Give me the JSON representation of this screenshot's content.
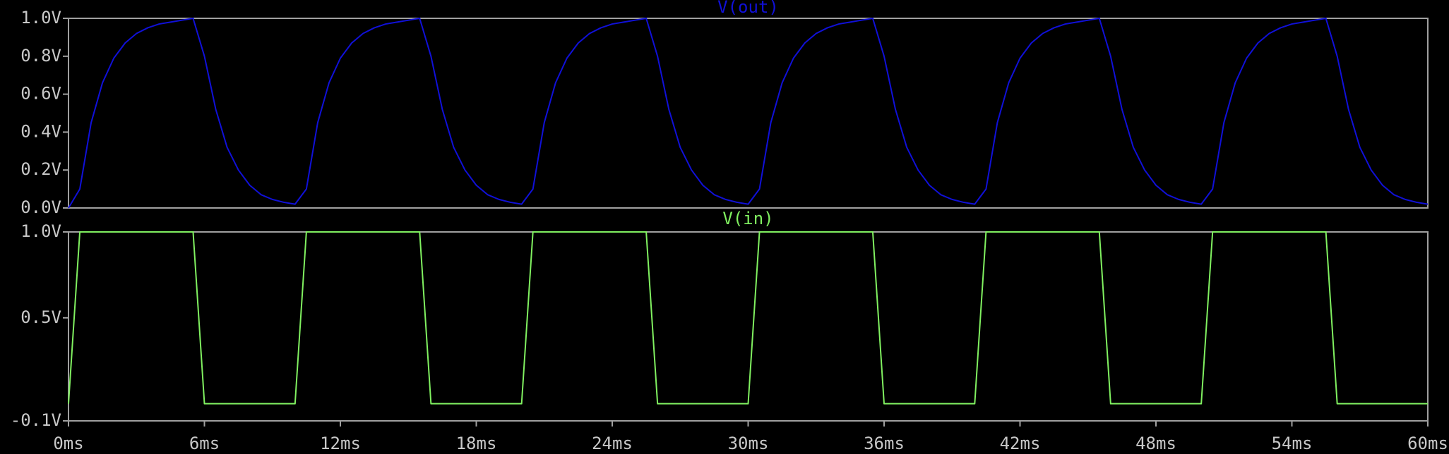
{
  "chart_data": [
    {
      "type": "line",
      "series": [
        {
          "name": "V(out)",
          "color": "#1010d8",
          "x": [
            0,
            0.5,
            1,
            1.5,
            2,
            2.5,
            3,
            3.5,
            4,
            4.5,
            5,
            5.5,
            6,
            6.5,
            7,
            7.5,
            8,
            8.5,
            9,
            9.5,
            10,
            10.5,
            11,
            11.5,
            12,
            12.5,
            13,
            13.5,
            14,
            14.5,
            15,
            15.5,
            16,
            16.5,
            17,
            17.5,
            18,
            18.5,
            19,
            19.5,
            20,
            20.5,
            21,
            21.5,
            22,
            22.5,
            23,
            23.5,
            24,
            24.5,
            25,
            25.5,
            26,
            26.5,
            27,
            27.5,
            28,
            28.5,
            29,
            29.5,
            30,
            30.5,
            31,
            31.5,
            32,
            32.5,
            33,
            33.5,
            34,
            34.5,
            35,
            35.5,
            36,
            36.5,
            37,
            37.5,
            38,
            38.5,
            39,
            39.5,
            40,
            40.5,
            41,
            41.5,
            42,
            42.5,
            43,
            43.5,
            44,
            44.5,
            45,
            45.5,
            46,
            46.5,
            47,
            47.5,
            48,
            48.5,
            49,
            49.5,
            50,
            50.5,
            51,
            51.5,
            52,
            52.5,
            53,
            53.5,
            54,
            54.5,
            55,
            55.5,
            56,
            56.5,
            57,
            57.5,
            58,
            58.5,
            59,
            59.5,
            60
          ],
          "values": [
            0,
            0.1,
            0.45,
            0.66,
            0.79,
            0.87,
            0.92,
            0.95,
            0.97,
            0.98,
            0.99,
            1.0,
            0.8,
            0.52,
            0.32,
            0.2,
            0.12,
            0.07,
            0.045,
            0.03,
            0.02,
            0.1,
            0.45,
            0.66,
            0.79,
            0.87,
            0.92,
            0.95,
            0.97,
            0.98,
            0.99,
            1.0,
            0.8,
            0.52,
            0.32,
            0.2,
            0.12,
            0.07,
            0.045,
            0.03,
            0.02,
            0.1,
            0.45,
            0.66,
            0.79,
            0.87,
            0.92,
            0.95,
            0.97,
            0.98,
            0.99,
            1.0,
            0.8,
            0.52,
            0.32,
            0.2,
            0.12,
            0.07,
            0.045,
            0.03,
            0.02,
            0.1,
            0.45,
            0.66,
            0.79,
            0.87,
            0.92,
            0.95,
            0.97,
            0.98,
            0.99,
            1.0,
            0.8,
            0.52,
            0.32,
            0.2,
            0.12,
            0.07,
            0.045,
            0.03,
            0.02,
            0.1,
            0.45,
            0.66,
            0.79,
            0.87,
            0.92,
            0.95,
            0.97,
            0.98,
            0.99,
            1.0,
            0.8,
            0.52,
            0.32,
            0.2,
            0.12,
            0.07,
            0.045,
            0.03,
            0.02,
            0.1,
            0.45,
            0.66,
            0.79,
            0.87,
            0.92,
            0.95,
            0.97,
            0.98,
            0.99,
            1.0,
            0.8,
            0.52,
            0.32,
            0.2,
            0.12,
            0.07,
            0.045,
            0.03,
            0.02
          ]
        }
      ],
      "xlim": [
        0,
        60
      ],
      "ylim": [
        0,
        1.0
      ],
      "yticks": [
        {
          "value": 0,
          "label": "0.0V"
        },
        {
          "value": 0.2,
          "label": "0.2V"
        },
        {
          "value": 0.4,
          "label": "0.4V"
        },
        {
          "value": 0.6,
          "label": "0.6V"
        },
        {
          "value": 0.8,
          "label": "0.8V"
        },
        {
          "value": 1.0,
          "label": "1.0V"
        }
      ]
    },
    {
      "type": "line",
      "series": [
        {
          "name": "V(in)",
          "color": "#80f060",
          "x": [
            0,
            0.5,
            5.5,
            6,
            10,
            10.5,
            15.5,
            16,
            20,
            20.5,
            25.5,
            26,
            30,
            30.5,
            35.5,
            36,
            40,
            40.5,
            45.5,
            46,
            50,
            50.5,
            55.5,
            56,
            60
          ],
          "values": [
            0,
            1,
            1,
            0,
            0,
            1,
            1,
            0,
            0,
            1,
            1,
            0,
            0,
            1,
            1,
            0,
            0,
            1,
            1,
            0,
            0,
            1,
            1,
            0,
            0
          ]
        }
      ],
      "xlim": [
        0,
        60
      ],
      "xticks": [
        {
          "value": 0,
          "label": "0ms"
        },
        {
          "value": 6,
          "label": "6ms"
        },
        {
          "value": 12,
          "label": "12ms"
        },
        {
          "value": 18,
          "label": "18ms"
        },
        {
          "value": 24,
          "label": "24ms"
        },
        {
          "value": 30,
          "label": "30ms"
        },
        {
          "value": 36,
          "label": "36ms"
        },
        {
          "value": 42,
          "label": "42ms"
        },
        {
          "value": 48,
          "label": "48ms"
        },
        {
          "value": 54,
          "label": "54ms"
        },
        {
          "value": 60,
          "label": "60ms"
        }
      ],
      "ylim": [
        -0.1,
        1.0
      ],
      "yticks": [
        {
          "value": -0.1,
          "label": "-0.1V"
        },
        {
          "value": 0.5,
          "label": "0.5V"
        },
        {
          "value": 1.0,
          "label": "1.0V"
        }
      ]
    }
  ]
}
